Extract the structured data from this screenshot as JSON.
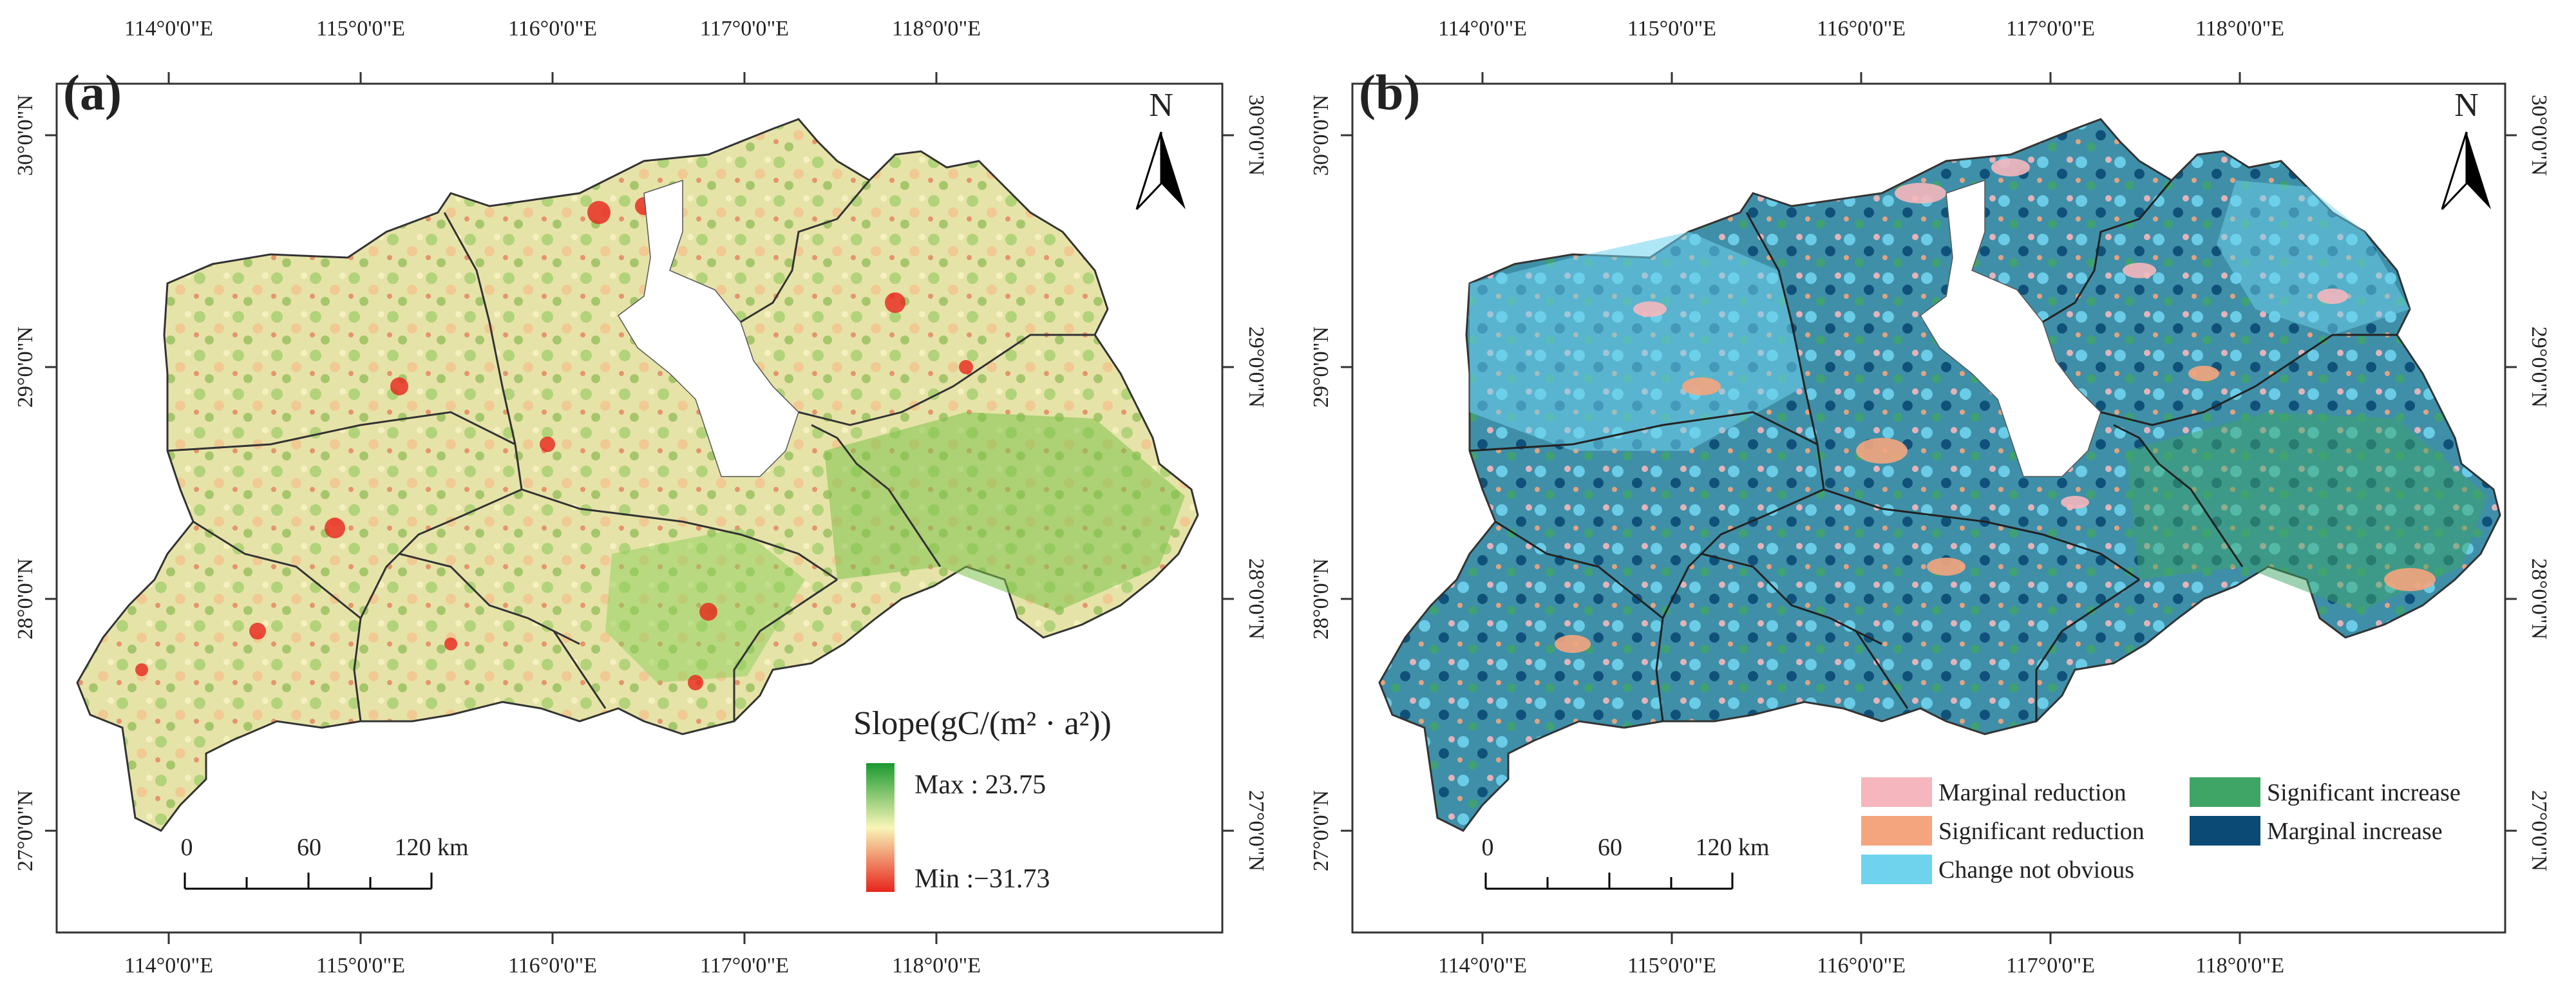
{
  "panels": [
    {
      "label": "(a)",
      "north": "N",
      "top_ticks": [
        "114°0'0\"E",
        "115°0'0\"E",
        "116°0'0\"E",
        "117°0'0\"E",
        "118°0'0\"E"
      ],
      "bottom_ticks": [
        "114°0'0\"E",
        "115°0'0\"E",
        "116°0'0\"E",
        "117°0'0\"E",
        "118°0'0\"E"
      ],
      "left_ticks": [
        "30°0'0\"N",
        "29°0'0\"N",
        "28°0'0\"N",
        "27°0'0\"N"
      ],
      "right_ticks": [
        "30°0'0\"N",
        "29°0'0\"N",
        "28°0'0\"N",
        "27°0'0\"N"
      ],
      "scale": {
        "zero": "0",
        "mid": "60",
        "end": "120 km"
      },
      "legend": {
        "title": "Slope(gC/(m² · a²))",
        "max_label": "Max : 23.75",
        "min_label": "Min :−31.73",
        "colors": [
          "#1a9a2e",
          "#f8f6b8",
          "#e8241c"
        ]
      }
    },
    {
      "label": "(b)",
      "north": "N",
      "top_ticks": [
        "114°0'0\"E",
        "115°0'0\"E",
        "116°0'0\"E",
        "117°0'0\"E",
        "118°0'0\"E"
      ],
      "bottom_ticks": [
        "114°0'0\"E",
        "115°0'0\"E",
        "116°0'0\"E",
        "117°0'0\"E",
        "118°0'0\"E"
      ],
      "left_ticks": [
        "30°0'0\"N",
        "29°0'0\"N",
        "28°0'0\"N",
        "27°0'0\"N"
      ],
      "right_ticks": [
        "30°0'0\"N",
        "29°0'0\"N",
        "28°0'0\"N",
        "27°0'0\"N"
      ],
      "scale": {
        "zero": "0",
        "mid": "60",
        "end": "120 km"
      },
      "legend": {
        "items": [
          {
            "label": "Marginal reduction",
            "color": "#f5b7bd"
          },
          {
            "label": "Significant reduction",
            "color": "#f4a57e"
          },
          {
            "label": "Change not obvious",
            "color": "#6fd3ee"
          },
          {
            "label": "Significant increase",
            "color": "#3ea567"
          },
          {
            "label": "Marginal increase",
            "color": "#0b4a75"
          }
        ]
      }
    }
  ]
}
